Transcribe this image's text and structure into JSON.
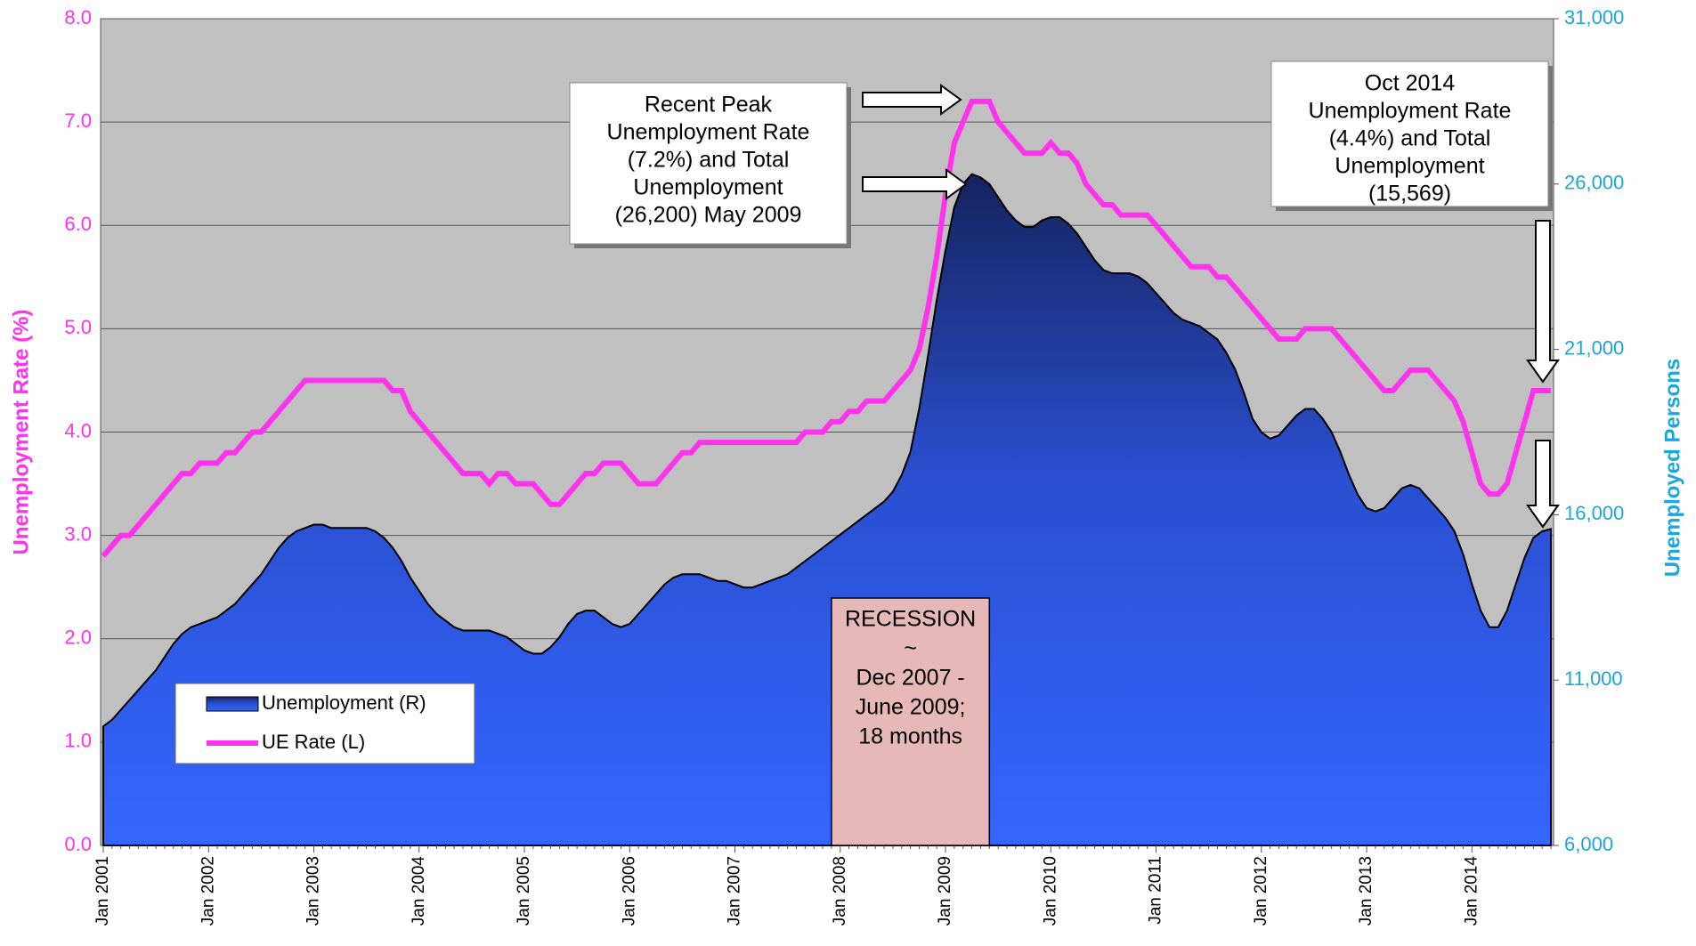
{
  "chart_data": {
    "type": "area-line",
    "y_label": "Unemployment Rate (%)",
    "y2_label": "Unemployed Persons",
    "ylim": [
      0,
      8
    ],
    "yticks": [
      {
        "value": 0,
        "label": "0.0"
      },
      {
        "value": 1,
        "label": "1.0"
      },
      {
        "value": 2,
        "label": "2.0"
      },
      {
        "value": 3,
        "label": "3.0"
      },
      {
        "value": 4,
        "label": "4.0"
      },
      {
        "value": 5,
        "label": "5.0"
      },
      {
        "value": 6,
        "label": "6.0"
      },
      {
        "value": 7,
        "label": "7.0"
      },
      {
        "value": 8,
        "label": "8.0"
      }
    ],
    "y2lim": [
      6000,
      31000
    ],
    "y2ticks": [
      {
        "value": 6000,
        "label": "6,000"
      },
      {
        "value": 11000,
        "label": "11,000"
      },
      {
        "value": 16000,
        "label": "16,000"
      },
      {
        "value": 21000,
        "label": "21,000"
      },
      {
        "value": 26000,
        "label": "26,000"
      },
      {
        "value": 31000,
        "label": "31,000"
      }
    ],
    "grid": true,
    "legend": "lower left",
    "categories": [
      "Jan 2001",
      null,
      null,
      null,
      null,
      null,
      null,
      null,
      null,
      null,
      null,
      null,
      "Jan 2002",
      null,
      null,
      null,
      null,
      null,
      null,
      null,
      null,
      null,
      null,
      null,
      "Jan 2003",
      null,
      null,
      null,
      null,
      null,
      null,
      null,
      null,
      null,
      null,
      null,
      "Jan 2004",
      null,
      null,
      null,
      null,
      null,
      null,
      null,
      null,
      null,
      null,
      null,
      "Jan 2005",
      null,
      null,
      null,
      null,
      null,
      null,
      null,
      null,
      null,
      null,
      null,
      "Jan 2006",
      null,
      null,
      null,
      null,
      null,
      null,
      null,
      null,
      null,
      null,
      null,
      "Jan 2007",
      null,
      null,
      null,
      null,
      null,
      null,
      null,
      null,
      null,
      null,
      null,
      "Jan 2008",
      null,
      null,
      null,
      null,
      null,
      null,
      null,
      null,
      null,
      null,
      null,
      "Jan 2009",
      null,
      null,
      null,
      null,
      null,
      null,
      null,
      null,
      null,
      null,
      null,
      "Jan 2010",
      null,
      null,
      null,
      null,
      null,
      null,
      null,
      null,
      null,
      null,
      null,
      "Jan 2011",
      null,
      null,
      null,
      null,
      null,
      null,
      null,
      null,
      null,
      null,
      null,
      "Jan 2012",
      null,
      null,
      null,
      null,
      null,
      null,
      null,
      null,
      null,
      null,
      null,
      "Jan 2013",
      null,
      null,
      null,
      null,
      null,
      null,
      null,
      null,
      null,
      null,
      null,
      "Jan 2014",
      null,
      null,
      null,
      null,
      null,
      null,
      null,
      null,
      null
    ],
    "series": [
      {
        "name": "Unemployment (R)",
        "kind": "area",
        "axis": "y2",
        "color": "#3366ff",
        "values": [
          9600,
          9800,
          10100,
          10400,
          10700,
          11000,
          11300,
          11700,
          12100,
          12400,
          12600,
          12700,
          12800,
          12900,
          13100,
          13300,
          13600,
          13900,
          14200,
          14600,
          15000,
          15300,
          15500,
          15600,
          15700,
          15700,
          15600,
          15600,
          15600,
          15600,
          15600,
          15500,
          15300,
          15000,
          14600,
          14100,
          13700,
          13300,
          13000,
          12800,
          12600,
          12500,
          12500,
          12500,
          12500,
          12400,
          12300,
          12100,
          11900,
          11800,
          11800,
          12000,
          12300,
          12700,
          13000,
          13100,
          13100,
          12900,
          12700,
          12600,
          12700,
          13000,
          13300,
          13600,
          13900,
          14100,
          14200,
          14200,
          14200,
          14100,
          14000,
          14000,
          13900,
          13800,
          13800,
          13900,
          14000,
          14100,
          14200,
          14400,
          14600,
          14800,
          15000,
          15200,
          15400,
          15600,
          15800,
          16000,
          16200,
          16400,
          16700,
          17200,
          17900,
          19200,
          20800,
          22500,
          24000,
          25300,
          26000,
          26300,
          26200,
          26000,
          25600,
          25200,
          24900,
          24700,
          24700,
          24900,
          25000,
          25000,
          24800,
          24500,
          24100,
          23700,
          23400,
          23300,
          23300,
          23300,
          23200,
          23000,
          22700,
          22400,
          22100,
          21900,
          21800,
          21700,
          21500,
          21300,
          20900,
          20400,
          19700,
          18900,
          18500,
          18300,
          18400,
          18700,
          19000,
          19200,
          19200,
          18900,
          18500,
          17900,
          17200,
          16600,
          16200,
          16100,
          16200,
          16500,
          16800,
          16900,
          16800,
          16500,
          16200,
          15900,
          15500,
          14800,
          13900,
          13100,
          12600,
          12600,
          13100,
          13900,
          14700,
          15300,
          15500,
          15569
        ]
      },
      {
        "name": "UE Rate (L)",
        "kind": "line",
        "axis": "y",
        "color": "#ff33ee",
        "values": [
          2.8,
          2.9,
          3.0,
          3.0,
          3.1,
          3.2,
          3.3,
          3.4,
          3.5,
          3.6,
          3.6,
          3.7,
          3.7,
          3.7,
          3.8,
          3.8,
          3.9,
          4.0,
          4.0,
          4.1,
          4.2,
          4.3,
          4.4,
          4.5,
          4.5,
          4.5,
          4.5,
          4.5,
          4.5,
          4.5,
          4.5,
          4.5,
          4.5,
          4.4,
          4.4,
          4.2,
          4.1,
          4.0,
          3.9,
          3.8,
          3.7,
          3.6,
          3.6,
          3.6,
          3.5,
          3.6,
          3.6,
          3.5,
          3.5,
          3.5,
          3.4,
          3.3,
          3.3,
          3.4,
          3.5,
          3.6,
          3.6,
          3.7,
          3.7,
          3.7,
          3.6,
          3.5,
          3.5,
          3.5,
          3.6,
          3.7,
          3.8,
          3.8,
          3.9,
          3.9,
          3.9,
          3.9,
          3.9,
          3.9,
          3.9,
          3.9,
          3.9,
          3.9,
          3.9,
          3.9,
          4.0,
          4.0,
          4.0,
          4.1,
          4.1,
          4.2,
          4.2,
          4.3,
          4.3,
          4.3,
          4.4,
          4.5,
          4.6,
          4.8,
          5.2,
          5.7,
          6.3,
          6.8,
          7.0,
          7.2,
          7.2,
          7.2,
          7.0,
          6.9,
          6.8,
          6.7,
          6.7,
          6.7,
          6.8,
          6.7,
          6.7,
          6.6,
          6.4,
          6.3,
          6.2,
          6.2,
          6.1,
          6.1,
          6.1,
          6.1,
          6.0,
          5.9,
          5.8,
          5.7,
          5.6,
          5.6,
          5.6,
          5.5,
          5.5,
          5.4,
          5.3,
          5.2,
          5.1,
          5.0,
          4.9,
          4.9,
          4.9,
          5.0,
          5.0,
          5.0,
          5.0,
          4.9,
          4.8,
          4.7,
          4.6,
          4.5,
          4.4,
          4.4,
          4.5,
          4.6,
          4.6,
          4.6,
          4.5,
          4.4,
          4.3,
          4.1,
          3.8,
          3.5,
          3.4,
          3.4,
          3.5,
          3.8,
          4.1,
          4.4,
          4.4,
          4.4
        ]
      }
    ],
    "annotations": [
      {
        "lines": [
          "Recent Peak",
          "Unemployment Rate",
          "(7.2%) and Total",
          "Unemployment",
          "(26,200) May 2009"
        ]
      },
      {
        "lines": [
          "Oct 2014",
          "Unemployment Rate",
          "(4.4%) and Total",
          "Unemployment",
          "(15,569)"
        ]
      },
      {
        "lines": [
          "RECESSION",
          "~",
          "Dec 2007 -",
          "June 2009;",
          "18 months"
        ]
      }
    ]
  }
}
